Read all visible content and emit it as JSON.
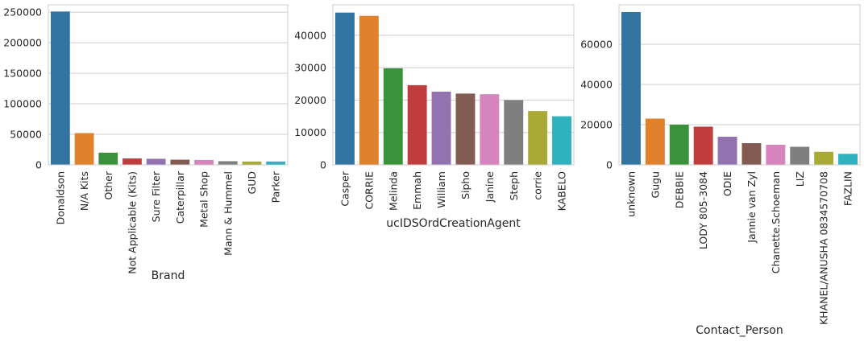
{
  "chart_data": [
    {
      "type": "bar",
      "xlabel": "Brand",
      "ylabel": "",
      "categories": [
        "Donaldson",
        "N/A Kits",
        "Other",
        "Not Applicable (Kits)",
        "Sure Filter",
        "Caterpillar",
        "Metal Shop",
        "Mann & Hummel",
        "GUD",
        "Parker"
      ],
      "values": [
        251000,
        52000,
        20000,
        10500,
        10000,
        8500,
        8000,
        6000,
        5500,
        5500
      ],
      "ylim": [
        0,
        262000
      ],
      "yticks": [
        0,
        50000,
        100000,
        150000,
        200000,
        250000
      ],
      "grid": "horizontal"
    },
    {
      "type": "bar",
      "xlabel": "ucIDSOrdCreationAgent",
      "ylabel": "",
      "categories": [
        "Casper",
        "CORRIE",
        "Melinda",
        "Emmah",
        "William",
        "Sipho",
        "Janine",
        "Steph",
        "corrie",
        "KABELO"
      ],
      "values": [
        47000,
        46000,
        29800,
        24600,
        22600,
        22000,
        21800,
        20000,
        16600,
        15000
      ],
      "ylim": [
        0,
        49400
      ],
      "yticks": [
        0,
        10000,
        20000,
        30000,
        40000
      ],
      "grid": "horizontal"
    },
    {
      "type": "bar",
      "xlabel": "Contact_Person",
      "ylabel": "",
      "categories": [
        "unknown",
        "Gugu",
        "DEBBIE",
        "LODY 805-3084",
        "ODIE",
        "Jannie van Zyl",
        "Chanette.Schoeman",
        "LIZ",
        "KHANEL/ANUSHA 0834570708",
        "FAZLIN"
      ],
      "values": [
        76000,
        23000,
        20000,
        19000,
        14000,
        10800,
        10000,
        9000,
        6500,
        5500
      ],
      "ylim": [
        0,
        79600
      ],
      "yticks": [
        0,
        20000,
        40000,
        60000
      ],
      "grid": "horizontal"
    }
  ],
  "colors": [
    "#3274a1",
    "#e1812c",
    "#3a923a",
    "#c03d3e",
    "#9372b2",
    "#845b53",
    "#d684bd",
    "#7f7f7f",
    "#a9aa35",
    "#2eb2bf"
  ]
}
